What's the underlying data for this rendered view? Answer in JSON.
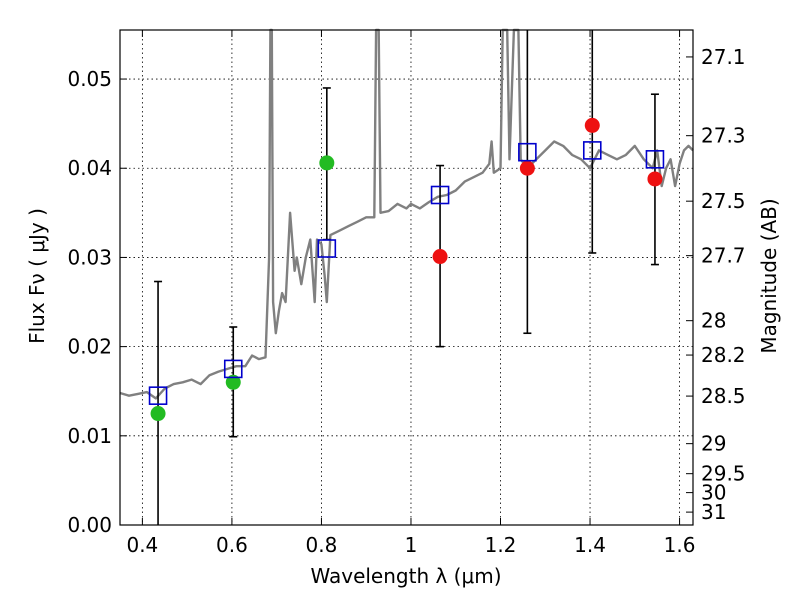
{
  "chart_data": {
    "type": "scatter",
    "title": "",
    "xlabel": "Wavelength  λ (μm)",
    "ylabel": "Flux  Fν  ( μJy )",
    "ylabel_right": "Magnitude (AB)",
    "xlim": [
      0.35,
      1.63
    ],
    "ylim": [
      0.0,
      0.0555
    ],
    "grid": true,
    "x_ticks": [
      {
        "value": 0.4,
        "label": "0.4"
      },
      {
        "value": 0.6,
        "label": "0.6"
      },
      {
        "value": 0.8,
        "label": "0.8"
      },
      {
        "value": 1.0,
        "label": "1"
      },
      {
        "value": 1.2,
        "label": "1.2"
      },
      {
        "value": 1.4,
        "label": "1.4"
      },
      {
        "value": 1.6,
        "label": "1.6"
      }
    ],
    "y_ticks": [
      {
        "value": 0.0,
        "label": "0.00"
      },
      {
        "value": 0.01,
        "label": "0.01"
      },
      {
        "value": 0.02,
        "label": "0.02"
      },
      {
        "value": 0.03,
        "label": "0.03"
      },
      {
        "value": 0.04,
        "label": "0.04"
      },
      {
        "value": 0.05,
        "label": "0.05"
      }
    ],
    "right_ticks": [
      {
        "value": 27.1,
        "label": "27.1"
      },
      {
        "value": 27.3,
        "label": "27.3"
      },
      {
        "value": 27.5,
        "label": "27.5"
      },
      {
        "value": 27.7,
        "label": "27.7"
      },
      {
        "value": 28,
        "label": "28"
      },
      {
        "value": 28.2,
        "label": "28.2"
      },
      {
        "value": 28.5,
        "label": "28.5"
      },
      {
        "value": 29,
        "label": "29"
      },
      {
        "value": 29.5,
        "label": "29.5"
      },
      {
        "value": 30,
        "label": "30"
      },
      {
        "value": 31,
        "label": "31"
      }
    ],
    "spectrum": {
      "color": "#808080",
      "points": [
        [
          0.35,
          0.0148
        ],
        [
          0.37,
          0.0145
        ],
        [
          0.39,
          0.0147
        ],
        [
          0.41,
          0.0149
        ],
        [
          0.43,
          0.0142
        ],
        [
          0.45,
          0.0153
        ],
        [
          0.47,
          0.0158
        ],
        [
          0.49,
          0.016
        ],
        [
          0.51,
          0.0163
        ],
        [
          0.53,
          0.0158
        ],
        [
          0.55,
          0.0168
        ],
        [
          0.57,
          0.0172
        ],
        [
          0.59,
          0.0175
        ],
        [
          0.61,
          0.0178
        ],
        [
          0.63,
          0.0178
        ],
        [
          0.645,
          0.019
        ],
        [
          0.66,
          0.0186
        ],
        [
          0.675,
          0.0188
        ],
        [
          0.683,
          0.03
        ],
        [
          0.686,
          0.0555
        ],
        [
          0.689,
          0.0555
        ],
        [
          0.692,
          0.025
        ],
        [
          0.698,
          0.0215
        ],
        [
          0.705,
          0.024
        ],
        [
          0.712,
          0.026
        ],
        [
          0.72,
          0.025
        ],
        [
          0.73,
          0.035
        ],
        [
          0.74,
          0.0285
        ],
        [
          0.745,
          0.03
        ],
        [
          0.755,
          0.027
        ],
        [
          0.765,
          0.03
        ],
        [
          0.775,
          0.032
        ],
        [
          0.785,
          0.025
        ],
        [
          0.79,
          0.032
        ],
        [
          0.8,
          0.0315
        ],
        [
          0.807,
          0.028
        ],
        [
          0.812,
          0.025
        ],
        [
          0.82,
          0.0325
        ],
        [
          0.84,
          0.033
        ],
        [
          0.86,
          0.0335
        ],
        [
          0.88,
          0.034
        ],
        [
          0.9,
          0.0345
        ],
        [
          0.918,
          0.0345
        ],
        [
          0.922,
          0.0555
        ],
        [
          0.928,
          0.0555
        ],
        [
          0.932,
          0.035
        ],
        [
          0.95,
          0.0352
        ],
        [
          0.97,
          0.036
        ],
        [
          0.99,
          0.0355
        ],
        [
          1.0,
          0.036
        ],
        [
          1.02,
          0.0355
        ],
        [
          1.04,
          0.0362
        ],
        [
          1.06,
          0.0368
        ],
        [
          1.08,
          0.037
        ],
        [
          1.1,
          0.0375
        ],
        [
          1.12,
          0.0385
        ],
        [
          1.14,
          0.039
        ],
        [
          1.16,
          0.0395
        ],
        [
          1.175,
          0.0405
        ],
        [
          1.18,
          0.043
        ],
        [
          1.185,
          0.0395
        ],
        [
          1.2,
          0.04
        ],
        [
          1.205,
          0.0555
        ],
        [
          1.215,
          0.0555
        ],
        [
          1.22,
          0.041
        ],
        [
          1.23,
          0.0555
        ],
        [
          1.24,
          0.0555
        ],
        [
          1.245,
          0.041
        ],
        [
          1.26,
          0.04
        ],
        [
          1.28,
          0.041
        ],
        [
          1.3,
          0.042
        ],
        [
          1.32,
          0.043
        ],
        [
          1.34,
          0.0425
        ],
        [
          1.36,
          0.0415
        ],
        [
          1.38,
          0.041
        ],
        [
          1.4,
          0.04
        ],
        [
          1.42,
          0.042
        ],
        [
          1.44,
          0.0415
        ],
        [
          1.46,
          0.041
        ],
        [
          1.48,
          0.0415
        ],
        [
          1.5,
          0.0425
        ],
        [
          1.52,
          0.041
        ],
        [
          1.54,
          0.04
        ],
        [
          1.55,
          0.042
        ],
        [
          1.56,
          0.038
        ],
        [
          1.57,
          0.04
        ],
        [
          1.58,
          0.041
        ],
        [
          1.59,
          0.038
        ],
        [
          1.6,
          0.0405
        ],
        [
          1.61,
          0.042
        ],
        [
          1.62,
          0.0425
        ],
        [
          1.63,
          0.042
        ]
      ]
    },
    "series": [
      {
        "marker": "open-square",
        "color": "#0000cc",
        "points": [
          {
            "x": 0.435,
            "y": 0.0145
          },
          {
            "x": 0.603,
            "y": 0.0175
          },
          {
            "x": 0.812,
            "y": 0.031
          },
          {
            "x": 1.065,
            "y": 0.037
          },
          {
            "x": 1.26,
            "y": 0.0418
          },
          {
            "x": 1.405,
            "y": 0.042
          },
          {
            "x": 1.545,
            "y": 0.041
          }
        ]
      },
      {
        "marker": "filled-circle",
        "color": "#22bb22",
        "points": [
          {
            "x": 0.435,
            "y": 0.0125,
            "ylow": 0.0,
            "yhigh": 0.0273
          },
          {
            "x": 0.603,
            "y": 0.016,
            "ylow": 0.0099,
            "yhigh": 0.0222
          },
          {
            "x": 0.812,
            "y": 0.0406,
            "ylow": 0.032,
            "yhigh": 0.049
          }
        ]
      },
      {
        "marker": "filled-circle",
        "color": "#ee1111",
        "points": [
          {
            "x": 1.065,
            "y": 0.0301,
            "ylow": 0.02,
            "yhigh": 0.0403
          },
          {
            "x": 1.26,
            "y": 0.04,
            "ylow": 0.0215,
            "yhigh": 0.0555
          },
          {
            "x": 1.405,
            "y": 0.0448,
            "ylow": 0.0305,
            "yhigh": 0.0555
          },
          {
            "x": 1.545,
            "y": 0.0388,
            "ylow": 0.0292,
            "yhigh": 0.0483
          }
        ]
      }
    ]
  }
}
